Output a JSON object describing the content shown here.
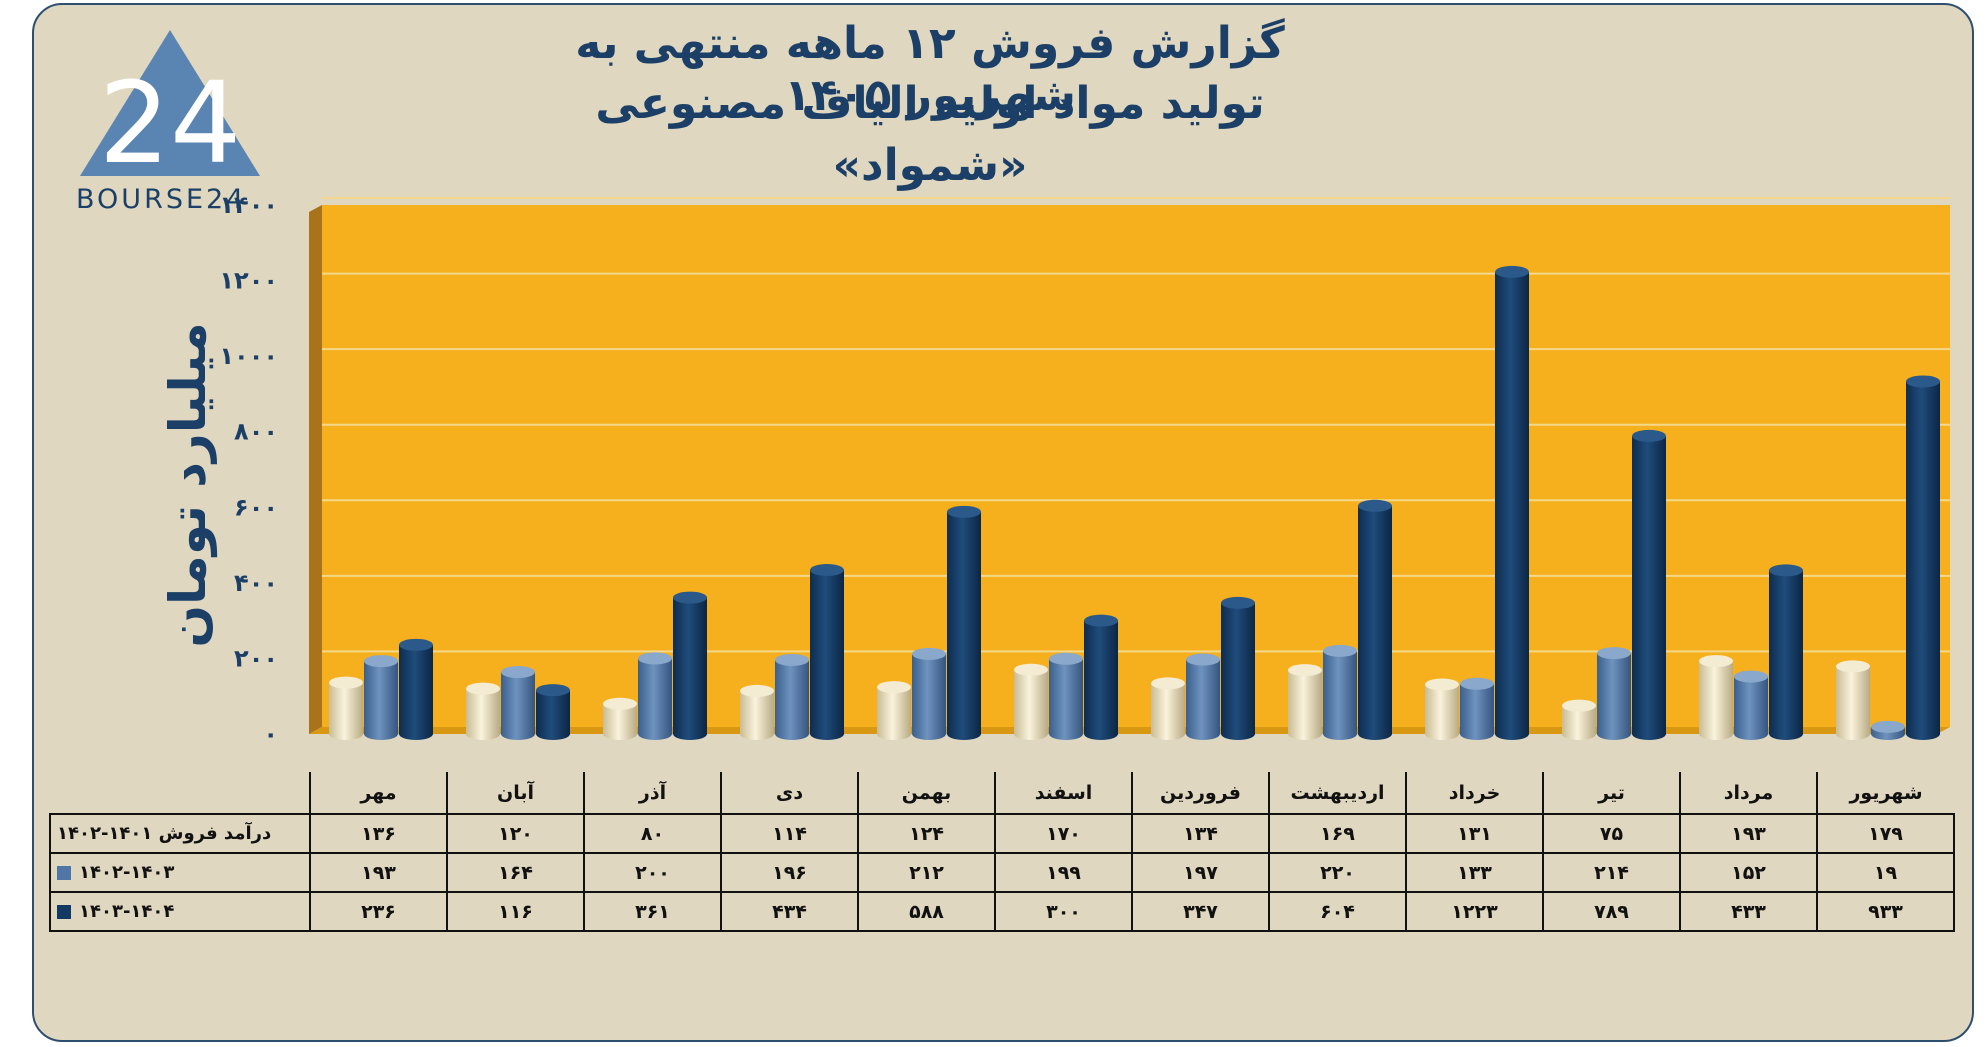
{
  "title": {
    "line1": "گزارش  فروش ۱۲ ماهه منتهی به شهریور ۱۴۰۵",
    "line2": "تولید مواد اولیه الیاف مصنوعی",
    "line3": "«شمواد»"
  },
  "logo": {
    "text": "BOURSE24",
    "mark": "24",
    "icon": "bourse24-triangle-logo"
  },
  "colors": {
    "background": "#dfd7bf",
    "plot": "#f6b01e",
    "series1": "#efe6c8",
    "series2": "#4f76a4",
    "series3": "#133a63",
    "text": "#1b3f66"
  },
  "chart_data": {
    "type": "bar",
    "ylabel": "میلیارد تومان",
    "ylim": [
      0,
      1400
    ],
    "yticks": [
      0,
      200,
      400,
      600,
      800,
      1000,
      1200,
      1400
    ],
    "ytick_labels": [
      "۰",
      "۲۰۰",
      "۴۰۰",
      "۶۰۰",
      "۸۰۰",
      "۱۰۰۰",
      "۱۲۰۰",
      "۱۴۰۰"
    ],
    "categories": [
      "مهر",
      "آبان",
      "آذر",
      "دی",
      "بهمن",
      "اسفند",
      "فروردین",
      "اردیبهشت",
      "خرداد",
      "تیر",
      "مرداد",
      "شهریور"
    ],
    "series": [
      {
        "name": "درآمد فروش ۱۴۰۱-۱۴۰۲",
        "values": [
          136,
          120,
          80,
          114,
          124,
          170,
          134,
          169,
          131,
          75,
          193,
          179
        ],
        "labels": [
          "۱۳۶",
          "۱۲۰",
          "۸۰",
          "۱۱۴",
          "۱۲۴",
          "۱۷۰",
          "۱۳۴",
          "۱۶۹",
          "۱۳۱",
          "۷۵",
          "۱۹۳",
          "۱۷۹"
        ]
      },
      {
        "name": "۱۴۰۲-۱۴۰۳",
        "values": [
          193,
          164,
          200,
          196,
          212,
          199,
          197,
          220,
          133,
          214,
          152,
          19
        ],
        "labels": [
          "۱۹۳",
          "۱۶۴",
          "۲۰۰",
          "۱۹۶",
          "۲۱۲",
          "۱۹۹",
          "۱۹۷",
          "۲۲۰",
          "۱۳۳",
          "۲۱۴",
          "۱۵۲",
          "۱۹"
        ]
      },
      {
        "name": "۱۴۰۳-۱۴۰۴",
        "values": [
          236,
          116,
          361,
          434,
          588,
          300,
          347,
          604,
          1223,
          789,
          433,
          933
        ],
        "labels": [
          "۲۳۶",
          "۱۱۶",
          "۳۶۱",
          "۴۳۴",
          "۵۸۸",
          "۳۰۰",
          "۳۴۷",
          "۶۰۴",
          "۱۲۲۳",
          "۷۸۹",
          "۴۳۳",
          "۹۳۳"
        ]
      }
    ],
    "grid": true,
    "legend": "table-left"
  }
}
